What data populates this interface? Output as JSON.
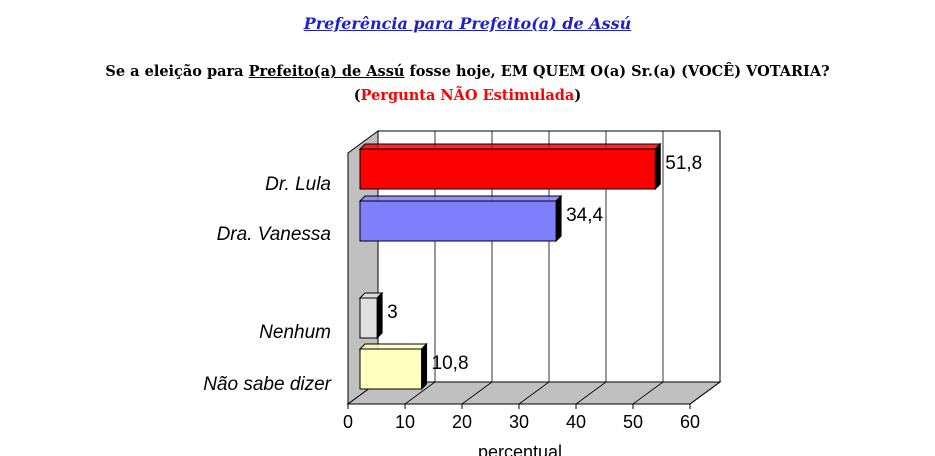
{
  "header": {
    "title": "Preferência para Prefeito(a) de Assú",
    "question_part1": "Se a eleição para ",
    "question_underlined": "Prefeito(a) de Assú",
    "question_part2": " fosse hoje, EM QUEM O(a) Sr.(a) (VOCÊ) VOTARIA?",
    "question_open": "(",
    "question_red": "Pergunta NÃO Estimulada",
    "question_close": ")"
  },
  "chart_data": {
    "type": "bar",
    "orientation": "horizontal",
    "categories": [
      "Dr. Lula",
      "Dra. Vanessa",
      "Nenhum",
      "Não sabe dizer"
    ],
    "values": [
      51.8,
      34.4,
      3,
      10.8
    ],
    "value_labels": [
      "51,8",
      "34,4",
      "3",
      "10,8"
    ],
    "colors": [
      "#ff0000",
      "#8080ff",
      "#e0e0e0",
      "#ffffc0"
    ],
    "xlabel": "percentual",
    "xlim": [
      0,
      60
    ],
    "xticks": [
      "0",
      "10",
      "20",
      "30",
      "40",
      "50",
      "60"
    ],
    "grid": true
  }
}
